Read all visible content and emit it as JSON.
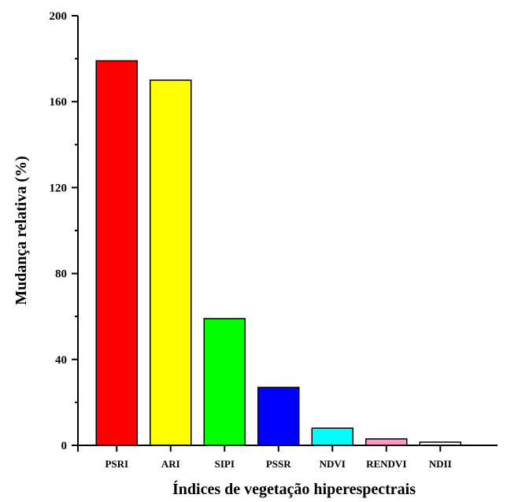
{
  "chart_data": {
    "type": "bar",
    "title": "",
    "xlabel": "Índices de vegetação hiperespectrais",
    "ylabel": "Mudança relativa (%)",
    "ylim": [
      0,
      200
    ],
    "yticks": [
      0,
      40,
      80,
      120,
      160,
      200
    ],
    "grid": false,
    "categories": [
      "PSRI",
      "ARI",
      "SIPI",
      "PSSR",
      "NDVI",
      "RENDVI",
      "NDII"
    ],
    "values": [
      179,
      170,
      59,
      27,
      8,
      3,
      1.5
    ],
    "colors": [
      "#ff0000",
      "#ffff00",
      "#00ff00",
      "#0000ff",
      "#00ffff",
      "#ff99cc",
      "#ffffff"
    ]
  }
}
